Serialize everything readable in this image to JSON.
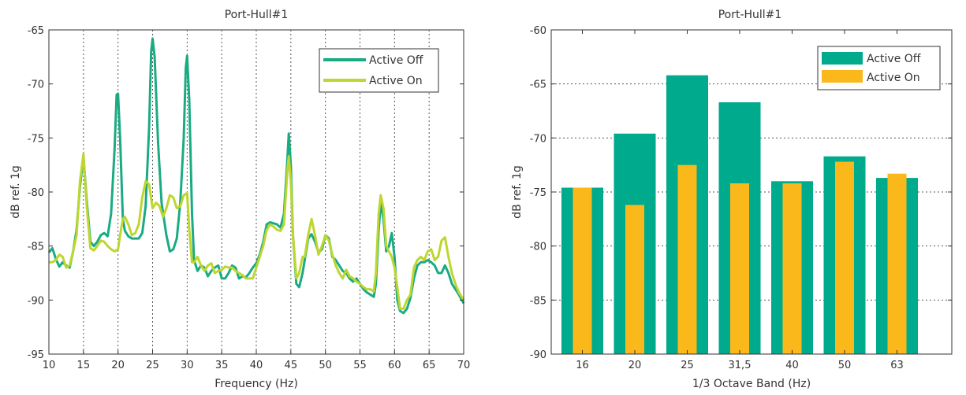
{
  "chart_data": [
    {
      "type": "line",
      "title": "Port-Hull#1",
      "xlabel": "Frequency (Hz)",
      "ylabel": "dB ref. 1g",
      "xlim": [
        10,
        70
      ],
      "ylim": [
        -95,
        -65
      ],
      "xticks": [
        10,
        15,
        20,
        25,
        30,
        35,
        40,
        45,
        50,
        55,
        60,
        65,
        70
      ],
      "yticks": [
        -65,
        -70,
        -75,
        -80,
        -85,
        -90,
        -95
      ],
      "grid": "vertical dotted",
      "legend_position": "top-right",
      "series": [
        {
          "name": "Active Off",
          "color": "#1bab83",
          "points": [
            [
              10,
              -85.6
            ],
            [
              10.5,
              -85.2
            ],
            [
              11,
              -86.2
            ],
            [
              11.5,
              -86.9
            ],
            [
              12,
              -86.5
            ],
            [
              12.5,
              -86.8
            ],
            [
              13,
              -87.0
            ],
            [
              13.5,
              -85.5
            ],
            [
              14,
              -83.5
            ],
            [
              14.5,
              -79.5
            ],
            [
              15,
              -76.7
            ],
            [
              15.5,
              -81.0
            ],
            [
              16,
              -84.6
            ],
            [
              16.5,
              -85.0
            ],
            [
              17,
              -84.6
            ],
            [
              17.5,
              -84.0
            ],
            [
              18,
              -83.8
            ],
            [
              18.5,
              -84.1
            ],
            [
              19,
              -82.0
            ],
            [
              19.5,
              -76.0
            ],
            [
              19.8,
              -71.0
            ],
            [
              20,
              -70.9
            ],
            [
              20.3,
              -75.0
            ],
            [
              20.7,
              -82.5
            ],
            [
              21,
              -83.6
            ],
            [
              21.5,
              -84.1
            ],
            [
              22,
              -84.3
            ],
            [
              22.5,
              -84.3
            ],
            [
              23,
              -84.3
            ],
            [
              23.5,
              -83.8
            ],
            [
              24,
              -81.3
            ],
            [
              24.5,
              -74.0
            ],
            [
              24.8,
              -67.0
            ],
            [
              25,
              -65.8
            ],
            [
              25.3,
              -67.5
            ],
            [
              25.8,
              -75.5
            ],
            [
              26.3,
              -81.0
            ],
            [
              27,
              -84.0
            ],
            [
              27.5,
              -85.5
            ],
            [
              28,
              -85.3
            ],
            [
              28.5,
              -84.3
            ],
            [
              29,
              -81.0
            ],
            [
              29.5,
              -75.0
            ],
            [
              29.8,
              -68.5
            ],
            [
              30,
              -67.4
            ],
            [
              30.3,
              -71.5
            ],
            [
              30.7,
              -82.0
            ],
            [
              31,
              -86.3
            ],
            [
              31.5,
              -87.3
            ],
            [
              32,
              -86.8
            ],
            [
              32.5,
              -87.0
            ],
            [
              33,
              -87.8
            ],
            [
              33.5,
              -87.3
            ],
            [
              34,
              -87.0
            ],
            [
              34.5,
              -86.8
            ],
            [
              35,
              -88.0
            ],
            [
              35.5,
              -88.0
            ],
            [
              36,
              -87.5
            ],
            [
              36.5,
              -86.8
            ],
            [
              37,
              -87.0
            ],
            [
              37.5,
              -88.0
            ],
            [
              38,
              -87.8
            ],
            [
              38.5,
              -87.9
            ],
            [
              39,
              -87.5
            ],
            [
              39.5,
              -87.0
            ],
            [
              40,
              -86.6
            ],
            [
              40.5,
              -85.8
            ],
            [
              41,
              -84.6
            ],
            [
              41.5,
              -83.0
            ],
            [
              42,
              -82.8
            ],
            [
              42.5,
              -82.9
            ],
            [
              43,
              -83.0
            ],
            [
              43.5,
              -83.3
            ],
            [
              44,
              -82.0
            ],
            [
              44.5,
              -77.0
            ],
            [
              44.7,
              -74.6
            ],
            [
              45,
              -77.5
            ],
            [
              45.3,
              -84.0
            ],
            [
              45.8,
              -88.5
            ],
            [
              46.2,
              -88.8
            ],
            [
              46.7,
              -87.5
            ],
            [
              47,
              -86.3
            ],
            [
              47.5,
              -84.3
            ],
            [
              48,
              -83.9
            ],
            [
              48.5,
              -84.6
            ],
            [
              49,
              -85.6
            ],
            [
              49.5,
              -85.3
            ],
            [
              50,
              -84.0
            ],
            [
              50.5,
              -84.3
            ],
            [
              51,
              -86.0
            ],
            [
              51.5,
              -86.3
            ],
            [
              52,
              -86.8
            ],
            [
              52.5,
              -87.3
            ],
            [
              53,
              -87.5
            ],
            [
              53.5,
              -88.0
            ],
            [
              54,
              -88.3
            ],
            [
              54.5,
              -88.0
            ],
            [
              55,
              -88.5
            ],
            [
              55.5,
              -89.0
            ],
            [
              56,
              -89.3
            ],
            [
              56.5,
              -89.5
            ],
            [
              57,
              -89.7
            ],
            [
              57.3,
              -88.5
            ],
            [
              57.7,
              -83.5
            ],
            [
              58,
              -81.0
            ],
            [
              58.4,
              -82.5
            ],
            [
              58.8,
              -85.5
            ],
            [
              59.2,
              -85.0
            ],
            [
              59.6,
              -83.8
            ],
            [
              60,
              -86.0
            ],
            [
              60.4,
              -90.0
            ],
            [
              60.8,
              -91.0
            ],
            [
              61.3,
              -91.2
            ],
            [
              61.8,
              -90.8
            ],
            [
              62.3,
              -89.8
            ],
            [
              62.8,
              -88.0
            ],
            [
              63.3,
              -86.8
            ],
            [
              63.8,
              -86.5
            ],
            [
              64.3,
              -86.5
            ],
            [
              64.8,
              -86.3
            ],
            [
              65.3,
              -86.5
            ],
            [
              65.8,
              -86.8
            ],
            [
              66.3,
              -87.5
            ],
            [
              66.8,
              -87.5
            ],
            [
              67.3,
              -86.8
            ],
            [
              67.8,
              -87.5
            ],
            [
              68.3,
              -88.5
            ],
            [
              68.8,
              -89.0
            ],
            [
              69.3,
              -89.5
            ],
            [
              70,
              -90.3
            ]
          ]
        },
        {
          "name": "Active On",
          "color": "#bed62f",
          "points": [
            [
              10,
              -86.5
            ],
            [
              10.5,
              -86.5
            ],
            [
              11,
              -86.3
            ],
            [
              11.5,
              -85.8
            ],
            [
              12,
              -86.0
            ],
            [
              12.5,
              -87.0
            ],
            [
              13,
              -86.8
            ],
            [
              13.5,
              -85.5
            ],
            [
              14,
              -84.0
            ],
            [
              14.5,
              -79.0
            ],
            [
              15,
              -76.5
            ],
            [
              15.5,
              -81.5
            ],
            [
              16,
              -85.2
            ],
            [
              16.5,
              -85.4
            ],
            [
              17,
              -85.0
            ],
            [
              17.5,
              -84.5
            ],
            [
              18,
              -84.6
            ],
            [
              18.5,
              -85.0
            ],
            [
              19,
              -85.3
            ],
            [
              19.5,
              -85.5
            ],
            [
              20,
              -85.3
            ],
            [
              20.3,
              -84.0
            ],
            [
              20.7,
              -82.5
            ],
            [
              21,
              -82.3
            ],
            [
              21.5,
              -83.0
            ],
            [
              22,
              -84.0
            ],
            [
              22.5,
              -83.8
            ],
            [
              23,
              -83.0
            ],
            [
              23.5,
              -80.5
            ],
            [
              24,
              -79.0
            ],
            [
              24.5,
              -79.3
            ],
            [
              25,
              -81.5
            ],
            [
              25.5,
              -81.0
            ],
            [
              26,
              -81.3
            ],
            [
              26.5,
              -82.3
            ],
            [
              27,
              -81.5
            ],
            [
              27.5,
              -80.3
            ],
            [
              28,
              -80.5
            ],
            [
              28.5,
              -81.5
            ],
            [
              29,
              -81.3
            ],
            [
              29.5,
              -80.3
            ],
            [
              30,
              -80.1
            ],
            [
              30.3,
              -83.5
            ],
            [
              30.7,
              -86.5
            ],
            [
              31,
              -86.5
            ],
            [
              31.5,
              -86.0
            ],
            [
              32,
              -86.8
            ],
            [
              32.5,
              -87.3
            ],
            [
              33,
              -86.8
            ],
            [
              33.5,
              -86.6
            ],
            [
              34,
              -87.5
            ],
            [
              34.5,
              -87.3
            ],
            [
              35,
              -87.2
            ],
            [
              35.5,
              -86.9
            ],
            [
              36,
              -87.0
            ],
            [
              36.5,
              -87.0
            ],
            [
              37,
              -87.3
            ],
            [
              37.5,
              -87.5
            ],
            [
              38,
              -87.7
            ],
            [
              38.5,
              -88.0
            ],
            [
              39,
              -88.0
            ],
            [
              39.5,
              -88.0
            ],
            [
              40,
              -87.0
            ],
            [
              40.5,
              -86.0
            ],
            [
              41,
              -85.0
            ],
            [
              41.5,
              -83.5
            ],
            [
              42,
              -83.0
            ],
            [
              42.5,
              -83.2
            ],
            [
              43,
              -83.5
            ],
            [
              43.5,
              -83.6
            ],
            [
              44,
              -83.0
            ],
            [
              44.5,
              -78.0
            ],
            [
              44.7,
              -76.7
            ],
            [
              45,
              -79.0
            ],
            [
              45.3,
              -84.0
            ],
            [
              45.8,
              -88.0
            ],
            [
              46.2,
              -87.5
            ],
            [
              46.7,
              -86.0
            ],
            [
              47,
              -86.0
            ],
            [
              47.5,
              -84.0
            ],
            [
              48,
              -82.5
            ],
            [
              48.5,
              -84.0
            ],
            [
              49,
              -85.8
            ],
            [
              49.5,
              -85.0
            ],
            [
              50,
              -84.0
            ],
            [
              50.5,
              -84.5
            ],
            [
              51,
              -85.8
            ],
            [
              51.5,
              -86.8
            ],
            [
              52,
              -87.5
            ],
            [
              52.5,
              -88.0
            ],
            [
              53,
              -87.2
            ],
            [
              53.5,
              -87.8
            ],
            [
              54,
              -88.0
            ],
            [
              54.5,
              -88.3
            ],
            [
              55,
              -88.5
            ],
            [
              55.5,
              -88.8
            ],
            [
              56,
              -89.0
            ],
            [
              56.5,
              -89.0
            ],
            [
              57,
              -89.2
            ],
            [
              57.3,
              -87.5
            ],
            [
              57.7,
              -82.0
            ],
            [
              58,
              -80.3
            ],
            [
              58.4,
              -81.5
            ],
            [
              58.8,
              -85.0
            ],
            [
              59.2,
              -85.5
            ],
            [
              59.6,
              -86.0
            ],
            [
              60,
              -87.0
            ],
            [
              60.4,
              -88.8
            ],
            [
              60.8,
              -90.8
            ],
            [
              61.3,
              -90.8
            ],
            [
              61.8,
              -90.0
            ],
            [
              62.3,
              -89.5
            ],
            [
              62.8,
              -87.0
            ],
            [
              63.3,
              -86.3
            ],
            [
              63.8,
              -86.0
            ],
            [
              64.3,
              -86.3
            ],
            [
              64.8,
              -85.5
            ],
            [
              65.3,
              -85.3
            ],
            [
              65.8,
              -86.3
            ],
            [
              66.3,
              -86.0
            ],
            [
              66.8,
              -84.5
            ],
            [
              67.3,
              -84.2
            ],
            [
              67.8,
              -86.0
            ],
            [
              68.3,
              -87.5
            ],
            [
              68.8,
              -88.5
            ],
            [
              69.3,
              -89.3
            ],
            [
              70,
              -90.0
            ]
          ]
        }
      ]
    },
    {
      "type": "bar",
      "title": "Port-Hull#1",
      "xlabel": "1/3 Octave Band (Hz)",
      "ylabel": "dB ref. 1g",
      "ylim": [
        -90,
        -60
      ],
      "yticks": [
        -60,
        -65,
        -70,
        -75,
        -80,
        -85,
        -90
      ],
      "grid": "horizontal dotted",
      "legend_position": "top-right",
      "categories": [
        "16",
        "20",
        "25",
        "31,5",
        "40",
        "50",
        "63"
      ],
      "series": [
        {
          "name": "Active Off",
          "color": "#00aa8d",
          "values": [
            -74.6,
            -69.6,
            -64.2,
            -66.7,
            -74.0,
            -71.7,
            -73.7
          ]
        },
        {
          "name": "Active On",
          "color": "#fbb81b",
          "values": [
            -74.6,
            -76.2,
            -72.5,
            -74.2,
            -74.2,
            -72.2,
            -73.3
          ]
        }
      ]
    }
  ]
}
